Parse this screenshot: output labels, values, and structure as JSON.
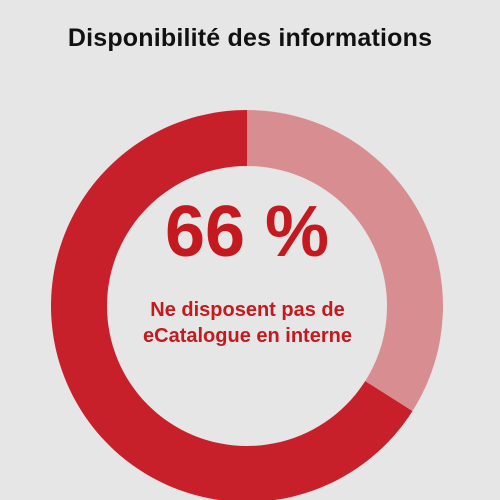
{
  "chart_data": {
    "type": "donut",
    "title": "Disponibilité des informations",
    "slices": [
      {
        "label": "Ne disposent pas de eCatalogue en interne",
        "value": 66,
        "color": "#c8202a"
      },
      {
        "label": "",
        "value": 34,
        "color": "#d88e91"
      }
    ],
    "center_value": "66 %",
    "center_caption": "Ne disposent pas de eCatalogue en interne"
  },
  "colors": {
    "background": "#e6e6e6",
    "primary_red": "#c8202a",
    "light_red": "#d88e91",
    "inner_disc": "#e6e6e6",
    "text_red": "#c41a1f"
  }
}
